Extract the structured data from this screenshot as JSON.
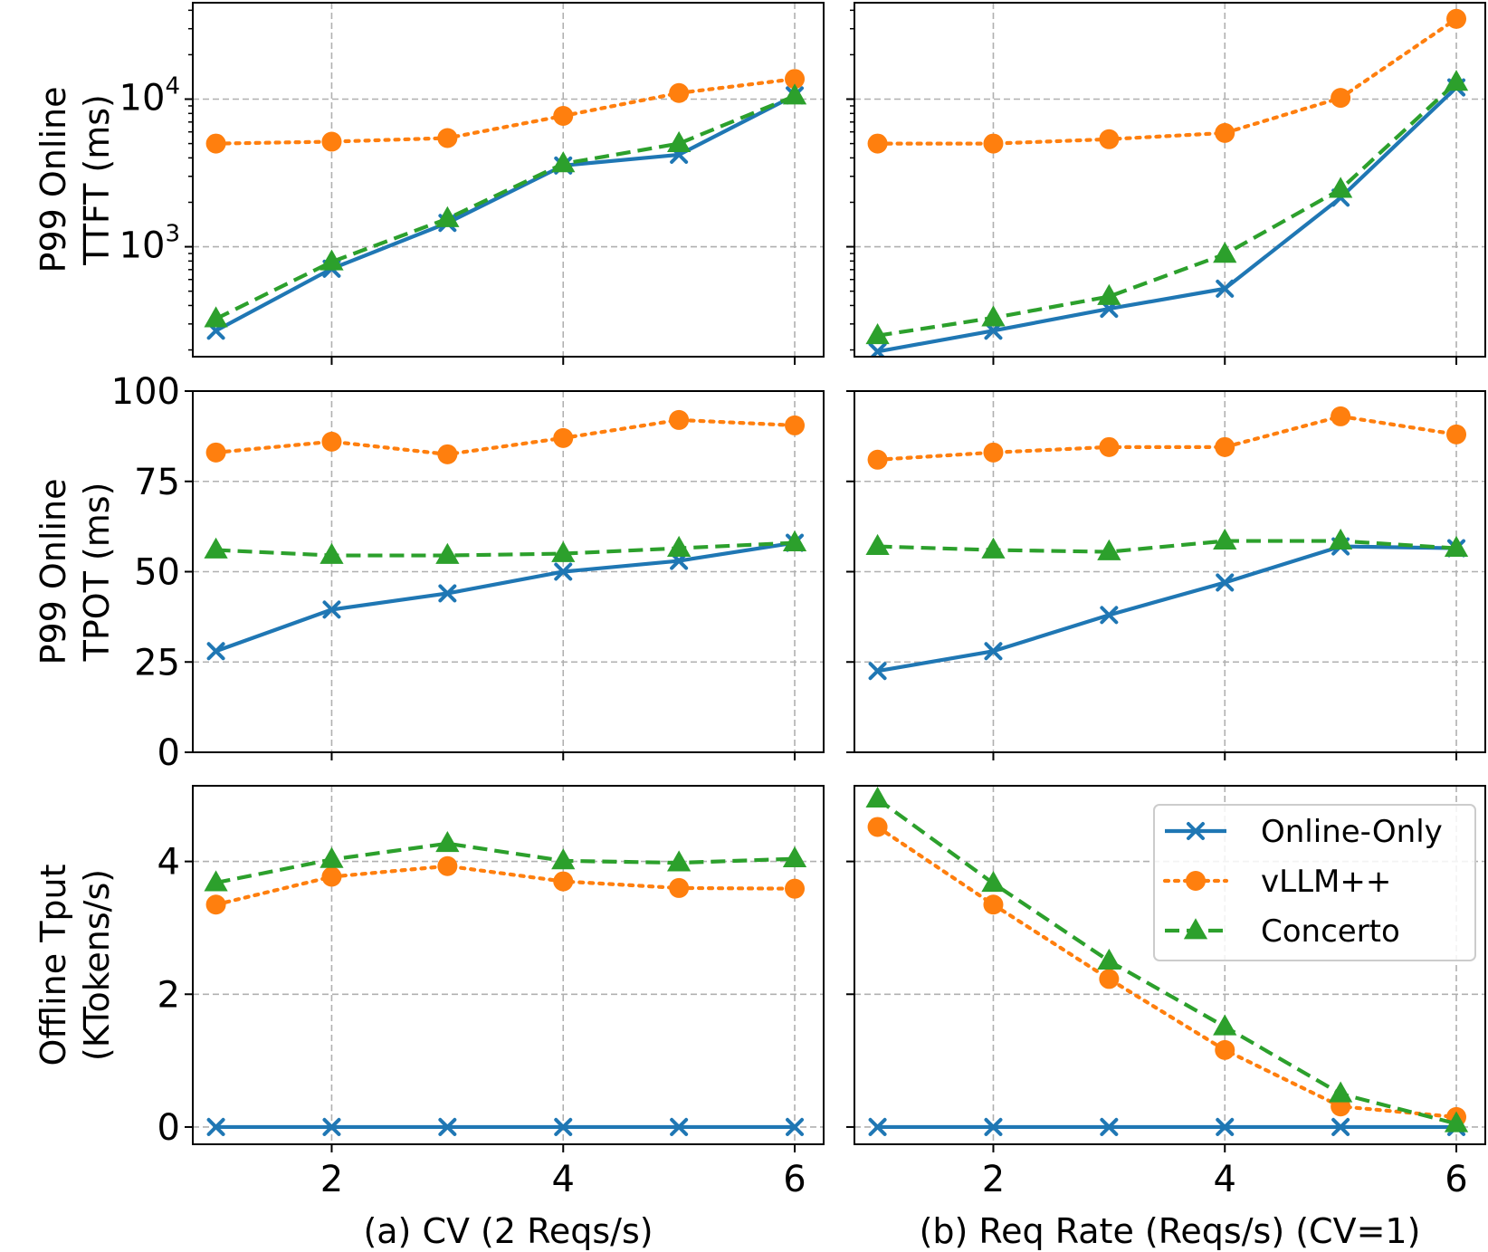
{
  "chart_data": {
    "type": "line",
    "x": [
      1,
      2,
      3,
      4,
      5,
      6
    ],
    "x_ticks": [
      "2",
      "4",
      "6"
    ],
    "xlim": [
      0.8,
      6.25
    ],
    "columns": [
      {
        "xlabel": "(a) CV (2 Reqs/s)"
      },
      {
        "xlabel": "(b) Req Rate (Reqs/s) (CV=1)"
      }
    ],
    "legend": {
      "position": "right of panel (b) offline throughput",
      "entries": [
        {
          "name": "Online-Only",
          "color": "#1f77b4",
          "linestyle": "solid",
          "marker": "x"
        },
        {
          "name": "vLLM++",
          "color": "#ff7f0e",
          "linestyle": "dotted",
          "marker": "o"
        },
        {
          "name": "Concerto",
          "color": "#2ca02c",
          "linestyle": "dashed",
          "marker": "^"
        }
      ]
    },
    "rows": [
      {
        "id": "ttft",
        "ylabel_lines": [
          "P99 Online",
          "TTFT (ms)"
        ],
        "yscale": "log",
        "ylim": [
          180,
          45000
        ],
        "y_ticks": [
          {
            "value": 1000,
            "base": "10",
            "exp": "3"
          },
          {
            "value": 10000,
            "base": "10",
            "exp": "4"
          }
        ],
        "panels": [
          {
            "series": [
              {
                "name": "Online-Only",
                "values": [
                  270,
                  710,
                  1450,
                  3550,
                  4200,
                  10600
                ]
              },
              {
                "name": "vLLM++",
                "values": [
                  5000,
                  5150,
                  5450,
                  7700,
                  11000,
                  13700
                ]
              },
              {
                "name": "Concerto",
                "values": [
                  325,
                  790,
                  1550,
                  3650,
                  5000,
                  10500
                ]
              }
            ]
          },
          {
            "series": [
              {
                "name": "Online-Only",
                "values": [
                  195,
                  270,
                  380,
                  520,
                  2150,
                  12000
                ]
              },
              {
                "name": "vLLM++",
                "values": [
                  5000,
                  5000,
                  5350,
                  5900,
                  10200,
                  35000
                ]
              },
              {
                "name": "Concerto",
                "values": [
                  250,
                  330,
                  460,
                  890,
                  2450,
                  13000
                ]
              }
            ]
          }
        ]
      },
      {
        "id": "tpot",
        "ylabel_lines": [
          "P99 Online",
          "TPOT (ms)"
        ],
        "yscale": "linear",
        "ylim": [
          0,
          100
        ],
        "y_ticks": [
          0,
          25,
          50,
          75,
          100
        ],
        "panels": [
          {
            "series": [
              {
                "name": "Online-Only",
                "values": [
                  28,
                  39.5,
                  44,
                  50,
                  53,
                  58
                ]
              },
              {
                "name": "vLLM++",
                "values": [
                  83,
                  86,
                  82.5,
                  87,
                  92,
                  90.5
                ]
              },
              {
                "name": "Concerto",
                "values": [
                  56,
                  54.5,
                  54.5,
                  55,
                  56.5,
                  58
                ]
              }
            ]
          },
          {
            "series": [
              {
                "name": "Online-Only",
                "values": [
                  22.5,
                  28,
                  38,
                  47,
                  57,
                  56.5
                ]
              },
              {
                "name": "vLLM++",
                "values": [
                  81,
                  83,
                  84.5,
                  84.5,
                  93,
                  88
                ]
              },
              {
                "name": "Concerto",
                "values": [
                  57,
                  56,
                  55.5,
                  58.5,
                  58.5,
                  56.5
                ]
              }
            ]
          }
        ]
      },
      {
        "id": "tput",
        "ylabel_lines": [
          "Offline Tput",
          "(KTokens/s)"
        ],
        "yscale": "linear",
        "ylim": [
          -0.26,
          5.14
        ],
        "y_ticks": [
          0,
          2,
          4
        ],
        "panels": [
          {
            "series": [
              {
                "name": "Online-Only",
                "values": [
                  0,
                  0,
                  0,
                  0,
                  0,
                  0
                ]
              },
              {
                "name": "vLLM++",
                "values": [
                  3.35,
                  3.77,
                  3.93,
                  3.7,
                  3.6,
                  3.59
                ]
              },
              {
                "name": "Concerto",
                "values": [
                  3.68,
                  4.03,
                  4.27,
                  4.01,
                  3.98,
                  4.04
                ]
              }
            ]
          },
          {
            "series": [
              {
                "name": "Online-Only",
                "values": [
                  0,
                  0,
                  0,
                  0,
                  0,
                  0
                ]
              },
              {
                "name": "vLLM++",
                "values": [
                  4.52,
                  3.35,
                  2.23,
                  1.16,
                  0.31,
                  0.15
                ]
              },
              {
                "name": "Concerto",
                "values": [
                  4.94,
                  3.67,
                  2.5,
                  1.51,
                  0.5,
                  0.05
                ]
              }
            ]
          }
        ]
      }
    ]
  }
}
